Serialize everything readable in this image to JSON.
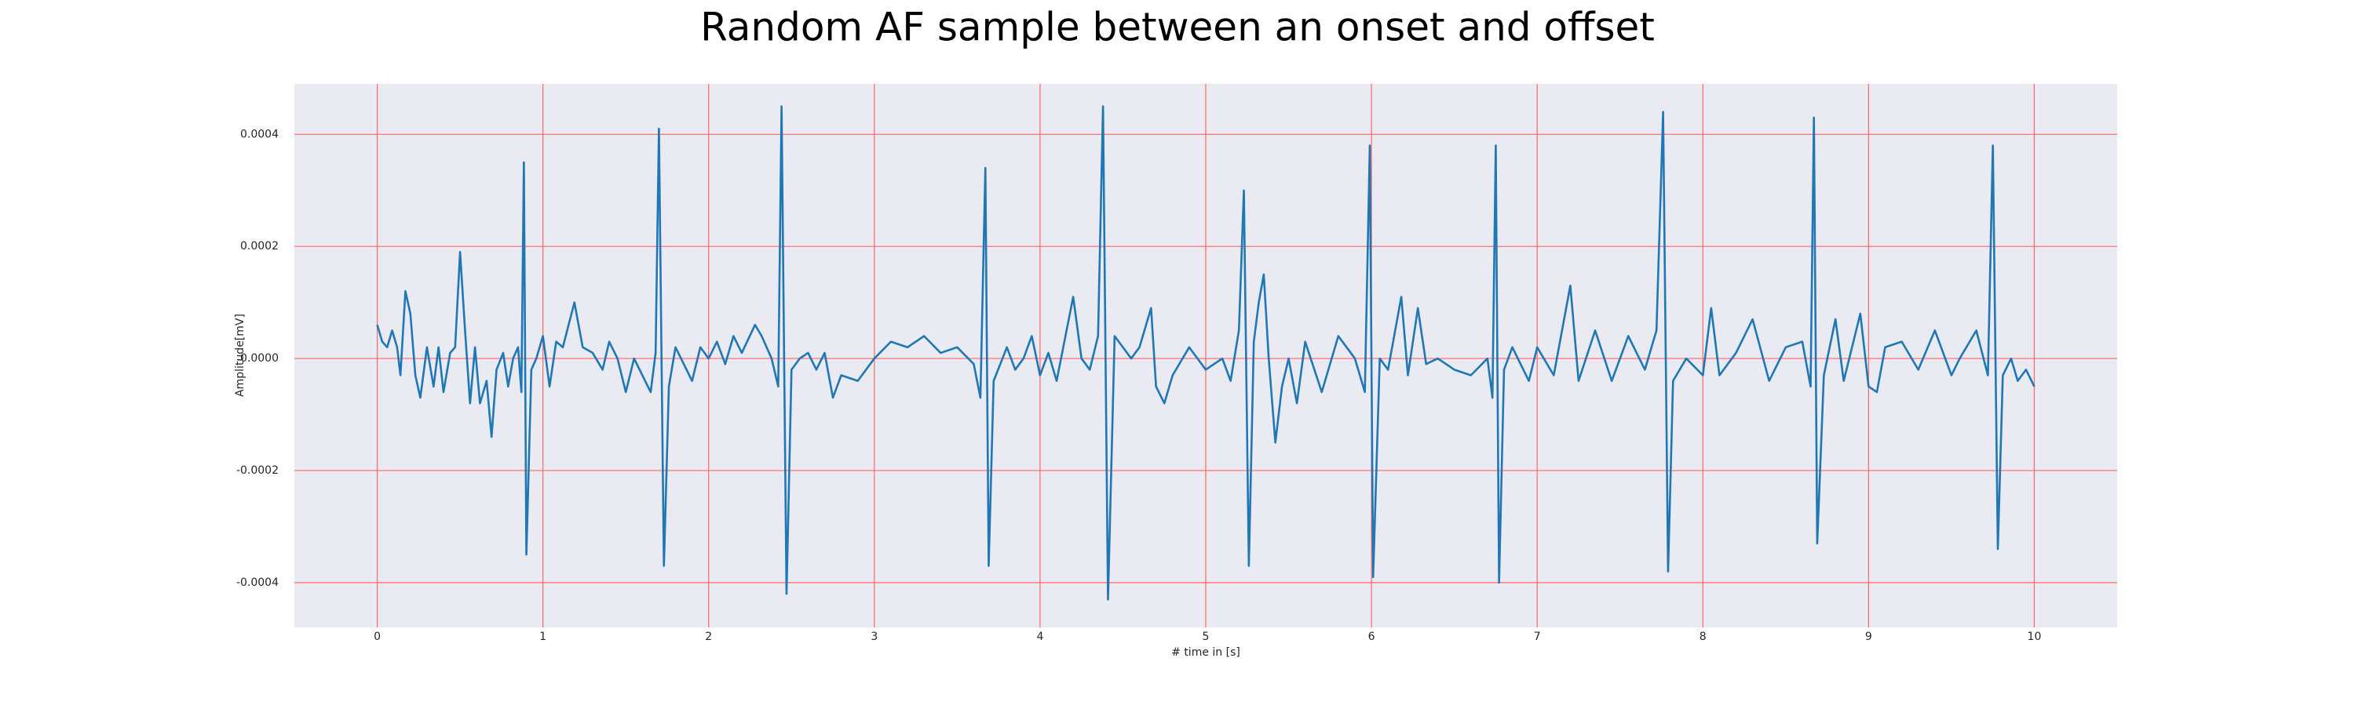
{
  "chart_data": {
    "type": "line",
    "title": "Random AF sample between an onset and offset",
    "xlabel": "# time in [s]",
    "ylabel": "Amplitude[mV]",
    "x": [
      0,
      0.03,
      0.06,
      0.09,
      0.12,
      0.14,
      0.17,
      0.2,
      0.23,
      0.26,
      0.3,
      0.34,
      0.37,
      0.4,
      0.44,
      0.47,
      0.5,
      0.53,
      0.56,
      0.59,
      0.62,
      0.66,
      0.69,
      0.72,
      0.76,
      0.79,
      0.82,
      0.85,
      0.87,
      0.885,
      0.9,
      0.93,
      0.96,
      1.0,
      1.04,
      1.08,
      1.12,
      1.19,
      1.24,
      1.3,
      1.36,
      1.4,
      1.45,
      1.5,
      1.55,
      1.6,
      1.65,
      1.68,
      1.7,
      1.73,
      1.76,
      1.8,
      1.85,
      1.9,
      1.95,
      2.0,
      2.05,
      2.1,
      2.15,
      2.2,
      2.28,
      2.32,
      2.38,
      2.42,
      2.44,
      2.47,
      2.5,
      2.55,
      2.6,
      2.65,
      2.7,
      2.75,
      2.8,
      2.9,
      3.0,
      3.1,
      3.2,
      3.3,
      3.4,
      3.5,
      3.6,
      3.64,
      3.67,
      3.69,
      3.72,
      3.8,
      3.85,
      3.9,
      3.95,
      4.0,
      4.05,
      4.1,
      4.2,
      4.25,
      4.3,
      4.35,
      4.38,
      4.41,
      4.45,
      4.5,
      4.55,
      4.6,
      4.67,
      4.7,
      4.75,
      4.8,
      4.9,
      5.0,
      5.1,
      5.15,
      5.2,
      5.23,
      5.26,
      5.29,
      5.32,
      5.35,
      5.38,
      5.42,
      5.46,
      5.5,
      5.55,
      5.6,
      5.7,
      5.8,
      5.9,
      5.96,
      5.99,
      6.01,
      6.05,
      6.1,
      6.18,
      6.22,
      6.28,
      6.33,
      6.4,
      6.5,
      6.6,
      6.7,
      6.73,
      6.75,
      6.77,
      6.8,
      6.85,
      6.95,
      7.0,
      7.1,
      7.2,
      7.25,
      7.35,
      7.45,
      7.55,
      7.65,
      7.72,
      7.76,
      7.79,
      7.82,
      7.9,
      8.0,
      8.05,
      8.1,
      8.2,
      8.3,
      8.4,
      8.5,
      8.6,
      8.65,
      8.67,
      8.69,
      8.73,
      8.8,
      8.85,
      8.95,
      9.0,
      9.05,
      9.1,
      9.2,
      9.3,
      9.4,
      9.5,
      9.55,
      9.65,
      9.72,
      9.75,
      9.78,
      9.81,
      9.86,
      9.9,
      9.95,
      10.0
    ],
    "values": [
      6e-05,
      3e-05,
      2e-05,
      5e-05,
      2e-05,
      -3e-05,
      0.00012,
      8e-05,
      -3e-05,
      -7e-05,
      2e-05,
      -5e-05,
      2e-05,
      -6e-05,
      1e-05,
      2e-05,
      0.00019,
      5e-05,
      -8e-05,
      2e-05,
      -8e-05,
      -4e-05,
      -0.00014,
      -2e-05,
      1e-05,
      -5e-05,
      0,
      2e-05,
      -6e-05,
      0.00035,
      -0.00035,
      -2e-05,
      0,
      4e-05,
      -5e-05,
      3e-05,
      2e-05,
      0.0001,
      2e-05,
      1e-05,
      -2e-05,
      3e-05,
      0,
      -6e-05,
      0,
      -3e-05,
      -6e-05,
      1e-05,
      0.00041,
      -0.00037,
      -5e-05,
      2e-05,
      -1e-05,
      -4e-05,
      2e-05,
      0,
      3e-05,
      -1e-05,
      4e-05,
      1e-05,
      6e-05,
      4e-05,
      0,
      -5e-05,
      0.00045,
      -0.00042,
      -2e-05,
      0,
      1e-05,
      -2e-05,
      1e-05,
      -7e-05,
      -3e-05,
      -4e-05,
      0,
      3e-05,
      2e-05,
      4e-05,
      1e-05,
      2e-05,
      -1e-05,
      -7e-05,
      0.00034,
      -0.00037,
      -4e-05,
      2e-05,
      -2e-05,
      0,
      4e-05,
      -3e-05,
      1e-05,
      -4e-05,
      0.00011,
      0,
      -2e-05,
      4e-05,
      0.00045,
      -0.00043,
      4e-05,
      2e-05,
      0,
      2e-05,
      9e-05,
      -5e-05,
      -8e-05,
      -3e-05,
      2e-05,
      -2e-05,
      0,
      -4e-05,
      5e-05,
      0.0003,
      -0.00037,
      3e-05,
      0.0001,
      0.00015,
      0,
      -0.00015,
      -5e-05,
      0,
      -8e-05,
      3e-05,
      -6e-05,
      4e-05,
      0,
      -6e-05,
      0.00038,
      -0.00039,
      0,
      -2e-05,
      0.00011,
      -3e-05,
      9e-05,
      -1e-05,
      0,
      -2e-05,
      -3e-05,
      0,
      -7e-05,
      0.00038,
      -0.0004,
      -2e-05,
      2e-05,
      -4e-05,
      2e-05,
      -3e-05,
      0.00013,
      -4e-05,
      5e-05,
      -4e-05,
      4e-05,
      -2e-05,
      5e-05,
      0.00044,
      -0.00038,
      -4e-05,
      0,
      -3e-05,
      9e-05,
      -3e-05,
      1e-05,
      7e-05,
      -4e-05,
      2e-05,
      3e-05,
      -5e-05,
      0.00043,
      -0.00033,
      -3e-05,
      7e-05,
      -4e-05,
      8e-05,
      -5e-05,
      -6e-05,
      2e-05,
      3e-05,
      -2e-05,
      5e-05,
      -3e-05,
      0,
      5e-05,
      -3e-05,
      0.00038,
      -0.00034,
      -3e-05,
      0,
      -4e-05,
      -2e-05,
      -5e-05
    ],
    "color": "#1f77b4",
    "xlim": [
      -0.5,
      10.5
    ],
    "ylim": [
      -0.00048,
      0.00049
    ],
    "xticks": [
      0,
      1,
      2,
      3,
      4,
      5,
      6,
      7,
      8,
      9,
      10
    ],
    "yticks": [
      -0.0004,
      -0.0002,
      {
        "value": 0,
        "label": "0.0000"
      },
      0.0002,
      0.0004
    ],
    "grid": true,
    "grid_color": "#ff6666",
    "background": "#eaeaf2"
  }
}
